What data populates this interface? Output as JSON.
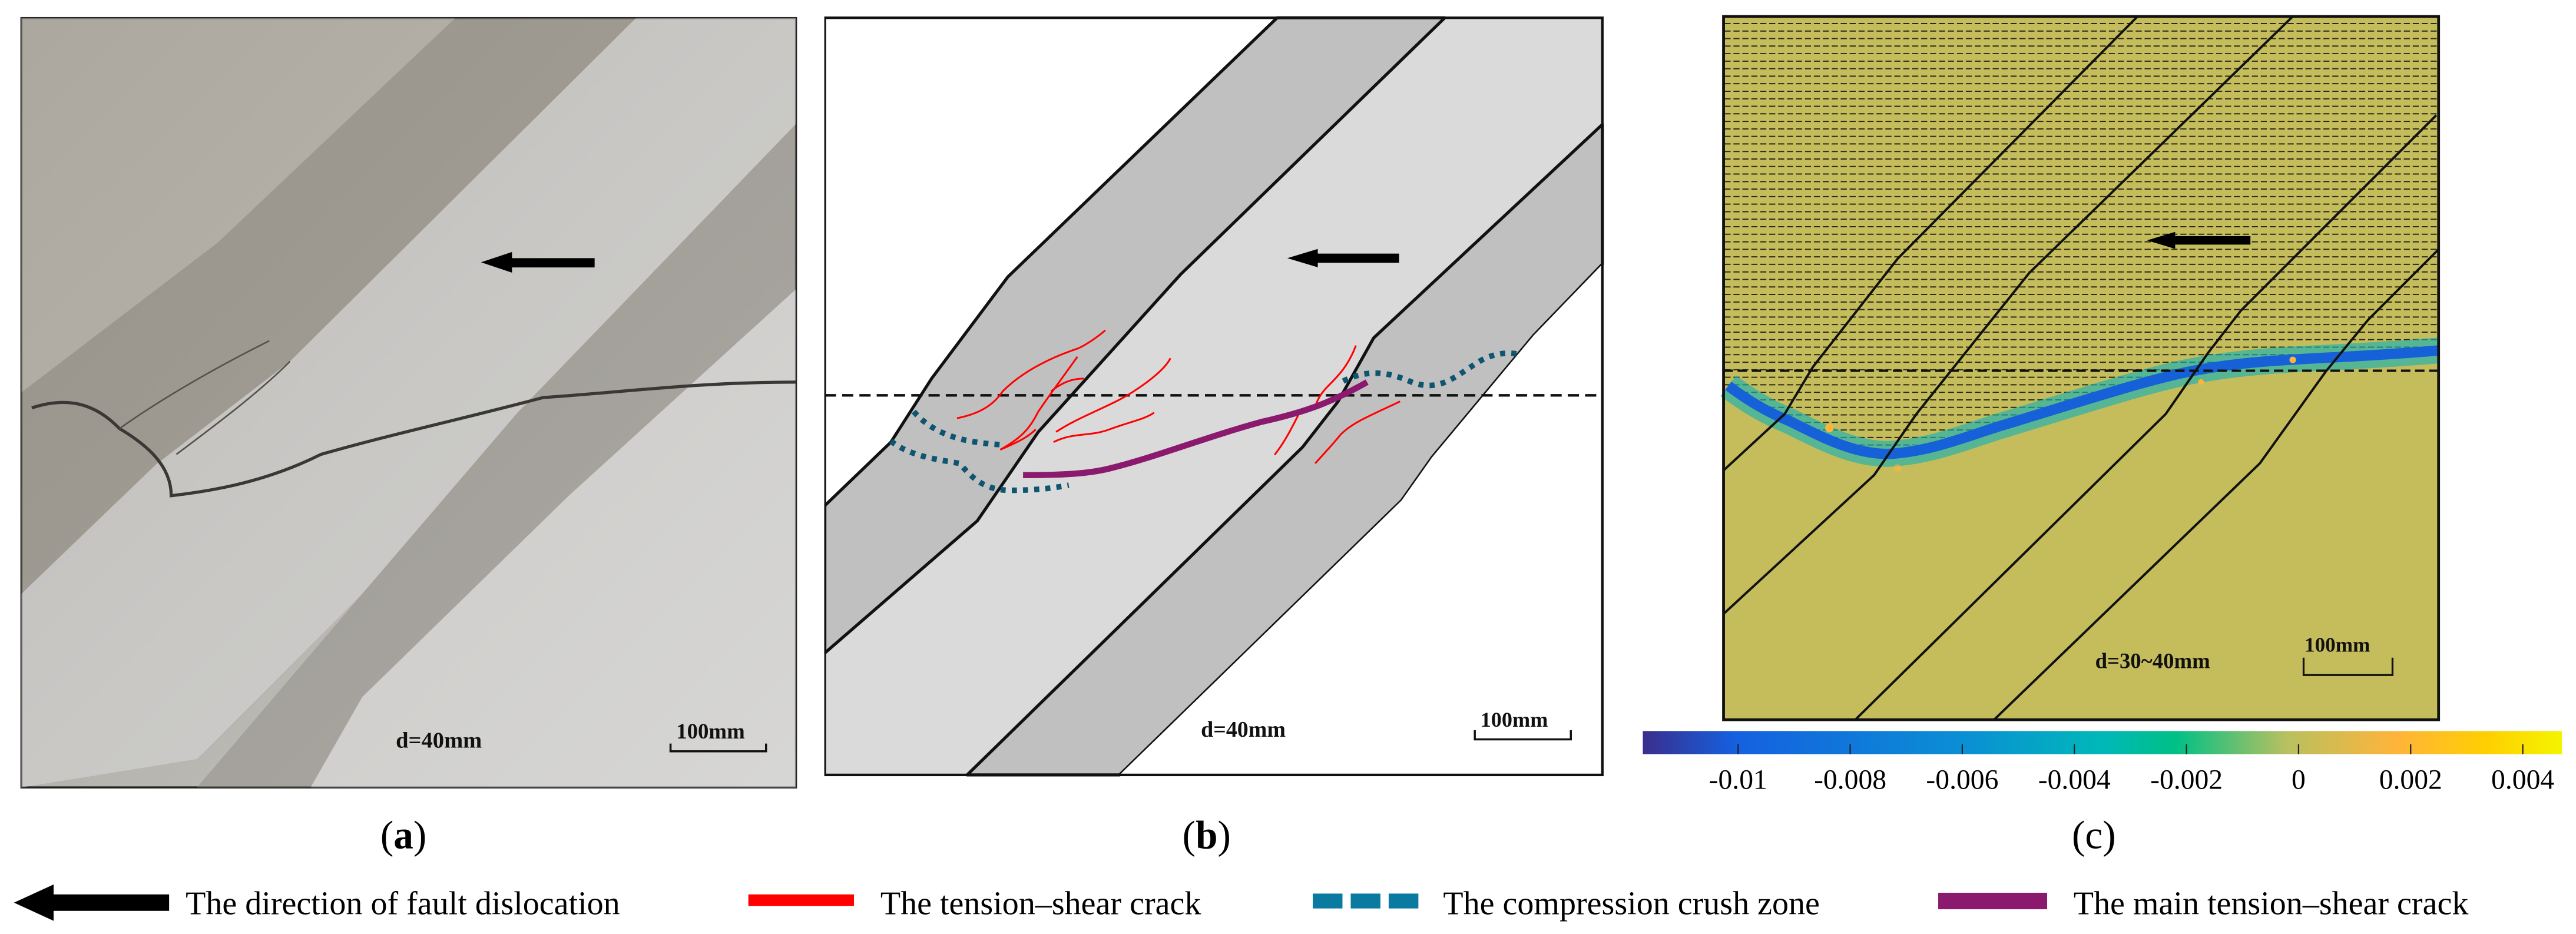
{
  "panels": {
    "a": {
      "caption_open": "(",
      "caption_letter": "a",
      "caption_close": ")",
      "displacement": "d=40mm",
      "scale": "100mm"
    },
    "b": {
      "caption_open": "(",
      "caption_letter": "b",
      "caption_close": ")",
      "displacement": "d=40mm",
      "scale": "100mm"
    },
    "c": {
      "caption_open": "(",
      "caption_letter": "c",
      "caption_close": ")",
      "displacement": "d=30~40mm",
      "scale": "100mm"
    }
  },
  "colorbar": {
    "range": [
      -0.0117,
      0.0047
    ],
    "ticks": [
      "-0.01",
      "-0.008",
      "-0.006",
      "-0.004",
      "-0.002",
      "0",
      "0.002",
      "0.004"
    ],
    "colors": [
      "#3a2e8c",
      "#1560e0",
      "#0a8fd4",
      "#00b8b8",
      "#00c086",
      "#b8c060",
      "#ffb43a",
      "#ffd000",
      "#f4f400"
    ]
  },
  "legend": [
    {
      "label": "The direction of fault dislocation",
      "icon": "left-arrow-icon",
      "color": "#000000"
    },
    {
      "label": "The tension–shear crack",
      "icon": "red-line-icon",
      "color": "#ff0000"
    },
    {
      "label": "The compression crush zone",
      "icon": "blue-dashed-line-icon",
      "color": "#0a7aa0"
    },
    {
      "label": "The main tension–shear crack",
      "icon": "purple-line-icon",
      "color": "#8b1a6e"
    }
  ]
}
